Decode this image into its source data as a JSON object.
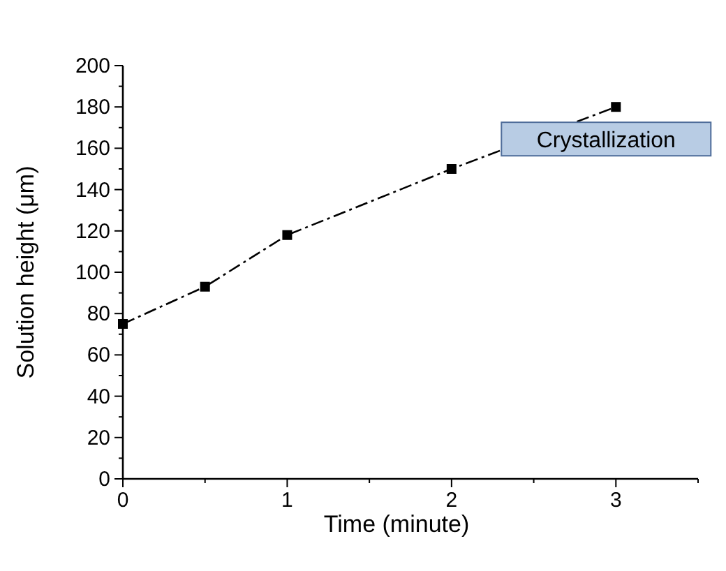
{
  "chart_data": {
    "type": "line",
    "xlabel": "Time (minute)",
    "ylabel": "Solution height (μm)",
    "x": [
      0,
      0.5,
      1,
      2,
      3
    ],
    "series": [
      {
        "color": "#000000",
        "values": [
          75,
          93,
          118,
          150,
          180
        ]
      }
    ],
    "xlim": [
      0,
      3.5
    ],
    "xticks": [
      0,
      {
        "value": 0.5,
        "label": null
      },
      1,
      {
        "value": 1.5,
        "label": null
      },
      2,
      {
        "value": 2.5,
        "label": null
      },
      3,
      {
        "value": 3.5,
        "label": null
      }
    ],
    "ylim": [
      0,
      200
    ],
    "yticks": [
      0,
      {
        "value": 10,
        "label": null
      },
      20,
      {
        "value": 30,
        "label": null
      },
      40,
      {
        "value": 50,
        "label": null
      },
      60,
      {
        "value": 70,
        "label": null
      },
      80,
      {
        "value": 90,
        "label": null
      },
      100,
      {
        "value": 110,
        "label": null
      },
      120,
      {
        "value": 130,
        "label": null
      },
      140,
      {
        "value": 150,
        "label": null
      },
      160,
      {
        "value": 170,
        "label": null
      },
      180,
      {
        "value": 190,
        "label": null
      },
      200
    ],
    "annotations": [
      "Crystallization"
    ],
    "marker": "square",
    "line_style": "dashed",
    "grid": false
  }
}
